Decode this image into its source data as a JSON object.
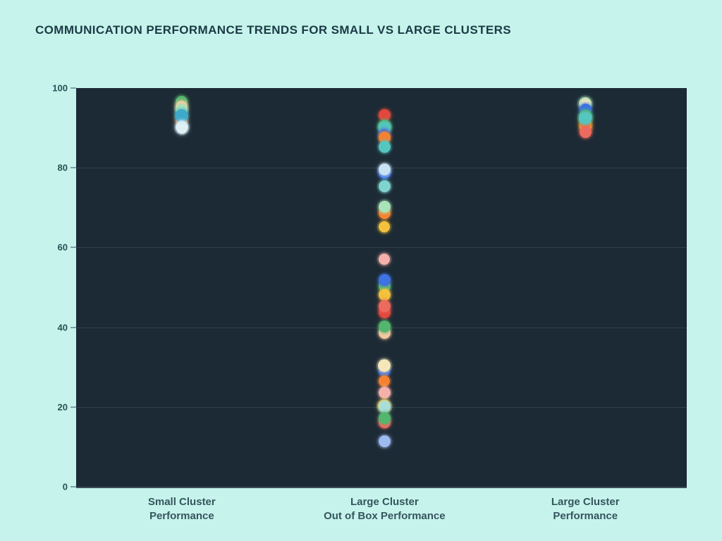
{
  "title": "COMMUNICATION PERFORMANCE TRENDS FOR SMALL VS LARGE CLUSTERS",
  "colors": {
    "page_bg": "#c6f4ec",
    "plot_bg": "#1c2a35",
    "title_text": "#1b3a45",
    "axis_text": "#2d4e57",
    "category_text": "#36555e",
    "gridline": "rgba(170,195,205,0.15)",
    "axis_line": "#3c5059"
  },
  "chart_data": {
    "type": "scatter",
    "title": "COMMUNICATION PERFORMANCE TRENDS FOR SMALL VS LARGE CLUSTERS",
    "xlabel": "",
    "ylabel": "",
    "ylim": [
      0,
      100
    ],
    "yticks": [
      0,
      20,
      40,
      60,
      80,
      100
    ],
    "grid": "horizontal",
    "legend_position": "none",
    "palette": {
      "red": "#e2483d",
      "salmon": "#ed6a5e",
      "pink": "#f4b1ab",
      "peach": "#f6c9a0",
      "orange": "#f58230",
      "cream": "#f5e7b9",
      "gold": "#f3c13d",
      "mint": "#a9e3b8",
      "green": "#53b66f",
      "teal": "#3fa9c9",
      "turquoise": "#55c6c0",
      "paleteal": "#a9dfd8",
      "lightteal": "#7fd4cf",
      "blue": "#3f72e3",
      "paleblue": "#c8e2f4",
      "periwinkle": "#9dbbf0",
      "white": "#dff0f4"
    },
    "categories": [
      {
        "label_lines": [
          "Small Cluster",
          "Performance"
        ],
        "x_frac": 0.173,
        "points": [
          {
            "value": 96.6,
            "color": "green",
            "r": 8.5
          },
          {
            "value": 95.4,
            "color": "peach",
            "r": 8.5
          },
          {
            "value": 94.5,
            "color": "mint",
            "r": 8.5
          },
          {
            "value": 91.9,
            "color": "orange",
            "r": 8.5
          },
          {
            "value": 93.0,
            "color": "teal",
            "r": 9.5
          },
          {
            "value": 90.3,
            "color": "paleblue",
            "r": 9
          },
          {
            "value": 90.0,
            "color": "white",
            "r": 8
          }
        ]
      },
      {
        "label_lines": [
          "Large Cluster",
          "Out of Box Performance"
        ],
        "x_frac": 0.505,
        "points": [
          {
            "value": 93.2,
            "color": "red",
            "r": 8.5
          },
          {
            "value": 90.4,
            "color": "green",
            "r": 9.5
          },
          {
            "value": 90.0,
            "color": "turquoise",
            "r": 8.5
          },
          {
            "value": 88.4,
            "color": "blue",
            "r": 8
          },
          {
            "value": 87.5,
            "color": "orange",
            "r": 8.5
          },
          {
            "value": 85.3,
            "color": "turquoise",
            "r": 8.5
          },
          {
            "value": 78.7,
            "color": "blue",
            "r": 8.5
          },
          {
            "value": 79.6,
            "color": "paleblue",
            "r": 8.5
          },
          {
            "value": 75.4,
            "color": "lightteal",
            "r": 8.5
          },
          {
            "value": 68.6,
            "color": "orange",
            "r": 8.5
          },
          {
            "value": 70.3,
            "color": "mint",
            "r": 8.5
          },
          {
            "value": 65.2,
            "color": "gold",
            "r": 8
          },
          {
            "value": 57.0,
            "color": "pink",
            "r": 8
          },
          {
            "value": 50.2,
            "color": "green",
            "r": 8.5
          },
          {
            "value": 51.8,
            "color": "blue",
            "r": 8.5
          },
          {
            "value": 48.1,
            "color": "gold",
            "r": 8.5
          },
          {
            "value": 43.8,
            "color": "red",
            "r": 8.5
          },
          {
            "value": 45.4,
            "color": "salmon",
            "r": 8.5
          },
          {
            "value": 38.6,
            "color": "peach",
            "r": 8.5
          },
          {
            "value": 40.2,
            "color": "green",
            "r": 8.5
          },
          {
            "value": 29.0,
            "color": "blue",
            "r": 8
          },
          {
            "value": 30.4,
            "color": "cream",
            "r": 9
          },
          {
            "value": 26.5,
            "color": "orange",
            "r": 8
          },
          {
            "value": 23.5,
            "color": "pink",
            "r": 8.5
          },
          {
            "value": 20.4,
            "color": "gold",
            "r": 9
          },
          {
            "value": 20.1,
            "color": "paleteal",
            "r": 8.5
          },
          {
            "value": 16.2,
            "color": "salmon",
            "r": 8.5
          },
          {
            "value": 17.2,
            "color": "green",
            "r": 8.5
          },
          {
            "value": 11.4,
            "color": "periwinkle",
            "r": 8.5
          }
        ]
      },
      {
        "label_lines": [
          "Large Cluster",
          "Performance"
        ],
        "x_frac": 0.834,
        "points": [
          {
            "value": 90.3,
            "color": "gold",
            "r": 8.5
          },
          {
            "value": 91.0,
            "color": "orange",
            "r": 8.5
          },
          {
            "value": 96.2,
            "color": "mint",
            "r": 9
          },
          {
            "value": 96.0,
            "color": "cream",
            "r": 6.5
          },
          {
            "value": 94.6,
            "color": "blue",
            "r": 8.5
          },
          {
            "value": 92.9,
            "color": "green",
            "r": 9.5
          },
          {
            "value": 92.4,
            "color": "turquoise",
            "r": 9
          },
          {
            "value": 89.0,
            "color": "salmon",
            "r": 8.5
          }
        ]
      }
    ]
  }
}
